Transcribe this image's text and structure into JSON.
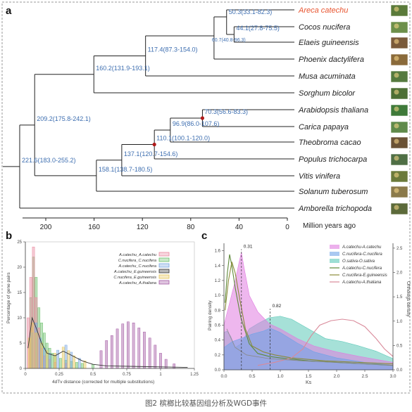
{
  "panel_labels": {
    "a": "a",
    "b": "b",
    "c": "c"
  },
  "tree": {
    "species": [
      "Areca catechu",
      "Cocos nucifera",
      "Elaeis guineensis",
      "Phoenix dactylifera",
      "Musa acuminata",
      "Sorghum bicolor",
      "Arabidopsis thaliana",
      "Carica papaya",
      "Theobroma cacao",
      "Populus trichocarpa",
      "Vitis vinifera",
      "Solanum tuberosum",
      "Amborella trichopoda"
    ],
    "highlight_species": "Areca catechu",
    "highlight_color": "#e8542f",
    "node_color": "#3d6eb0",
    "wgd_marker_color": "#b01b1b",
    "nodes": [
      {
        "label": "50.3(33.1-82.3)",
        "age": 50.3
      },
      {
        "label": "44.1(27.8-75.5)",
        "age": 44.1
      },
      {
        "label": "60.7(40.8-96.3)",
        "age": 60.7
      },
      {
        "label": "117.4(87.3-154.0)",
        "age": 117.4
      },
      {
        "label": "160.2(131.9-193.1)",
        "age": 160.2
      },
      {
        "label": "209.2(175.8-242.1)",
        "age": 209.2
      },
      {
        "label": "70.3(56.6-83.3)",
        "age": 70.3
      },
      {
        "label": "96.9(86.0-107.6)",
        "age": 96.9
      },
      {
        "label": "110.1(100.1-120.0)",
        "age": 110.1
      },
      {
        "label": "137.1(120.7-154.6)",
        "age": 137.1
      },
      {
        "label": "158.1(138.7-180.5)",
        "age": 158.1
      },
      {
        "label": "221.6(183.0-255.2)",
        "age": 221.6
      }
    ],
    "axis_ticks": [
      "200",
      "160",
      "120",
      "80",
      "40",
      "0"
    ],
    "axis_label": "Million years ago"
  },
  "panel_b": {
    "legend": [
      "A.catechu_A.catechu",
      "C.nucifera_C.nucifera",
      "A.catechu_C.nucifera",
      "A.catechu_E.guineensis",
      "C.nucifera_E.guineensis",
      "A.catechu_A.thaliana"
    ],
    "legend_colors": [
      "#e98aa0",
      "#6bbf6b",
      "#7aa7e0",
      "#333333",
      "#e6c65a",
      "#a35aa3"
    ],
    "y_label": "Percentage of gene pairs",
    "x_label": "4dTv distance (corrected for multiple substitutions)",
    "x_ticks": [
      "0",
      "0.25",
      "0.5",
      "0.75",
      "1",
      "1.25"
    ],
    "y_ticks": [
      "0",
      "5",
      "10",
      "15",
      "20",
      "25"
    ]
  },
  "panel_c": {
    "legend": [
      "A.catechu-A.catechu",
      "C.nucifera-C.nucifera",
      "O.sativa-O.sativa",
      "A.catechu-C.nucifera",
      "C.nucifera-E.guineensis",
      "A.catechu-A.thaliana"
    ],
    "legend_colors": [
      "#e07be0",
      "#6fa3e8",
      "#5cc9b8",
      "#5e8a3a",
      "#8b8b3a",
      "#d98a9a"
    ],
    "annotations": [
      "0.31",
      "0.82"
    ],
    "y_label_left": "Pairing density",
    "y_label_right": "Orthologs density",
    "x_label": "Ks",
    "x_ticks": [
      "0.0",
      "0.5",
      "1.0",
      "1.5",
      "2.0",
      "2.5",
      "3.0"
    ],
    "y_ticks_left": [
      "0.0",
      "0.2",
      "0.4",
      "0.6",
      "0.8",
      "1.0",
      "1.2",
      "1.4",
      "1.6"
    ],
    "y_ticks_right": [
      "0.0",
      "0.5",
      "1.0",
      "1.5",
      "2.0",
      "2.5"
    ]
  },
  "caption": "图2 槟榔比较基因组分析及WGD事件"
}
